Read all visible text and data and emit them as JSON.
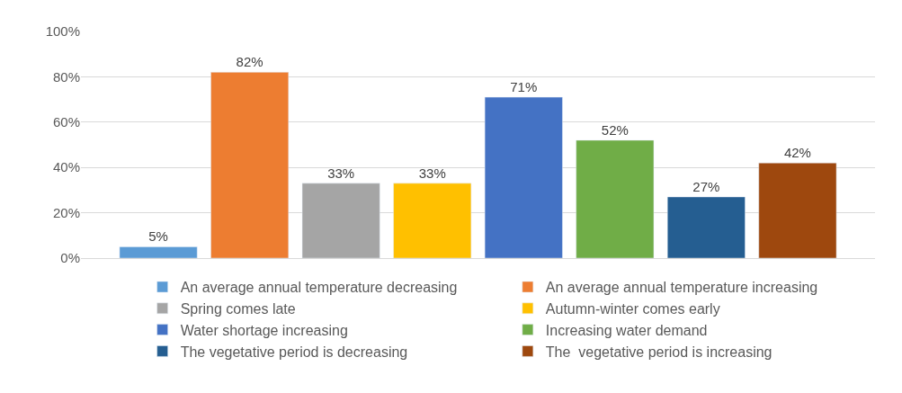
{
  "chart_data": {
    "type": "bar",
    "categories": [
      null
    ],
    "series": [
      {
        "name": "An average annual temperature decreasing",
        "color": "#5b9bd5",
        "values": [
          5
        ],
        "value_labels": [
          "5%"
        ]
      },
      {
        "name": "An average annual temperature increasing",
        "color": "#ed7d31",
        "values": [
          82
        ],
        "value_labels": [
          "82%"
        ]
      },
      {
        "name": "Spring comes late",
        "color": "#a5a5a5",
        "values": [
          33
        ],
        "value_labels": [
          "33%"
        ]
      },
      {
        "name": "Autumn-winter comes early",
        "color": "#ffc000",
        "values": [
          33
        ],
        "value_labels": [
          "33%"
        ]
      },
      {
        "name": "Water shortage increasing",
        "color": "#4472c4",
        "values": [
          71
        ],
        "value_labels": [
          "71%"
        ]
      },
      {
        "name": "Increasing water demand",
        "color": "#70ad47",
        "values": [
          52
        ],
        "value_labels": [
          "52%"
        ]
      },
      {
        "name": "The vegetative period is decreasing",
        "color": "#255e91",
        "values": [
          27
        ],
        "value_labels": [
          "27%"
        ]
      },
      {
        "name": "The  vegetative period is increasing",
        "color": "#9e480e",
        "values": [
          42
        ],
        "value_labels": [
          "42%"
        ]
      }
    ],
    "ylim": [
      0,
      100
    ],
    "yticks": [
      {
        "value": 0,
        "label": "0%"
      },
      {
        "value": 20,
        "label": "20%"
      },
      {
        "value": 40,
        "label": "40%"
      },
      {
        "value": 60,
        "label": "60%"
      },
      {
        "value": 80,
        "label": "80%"
      },
      {
        "value": 100,
        "label": "100%"
      }
    ],
    "grid": "y",
    "legend": "bottom"
  }
}
